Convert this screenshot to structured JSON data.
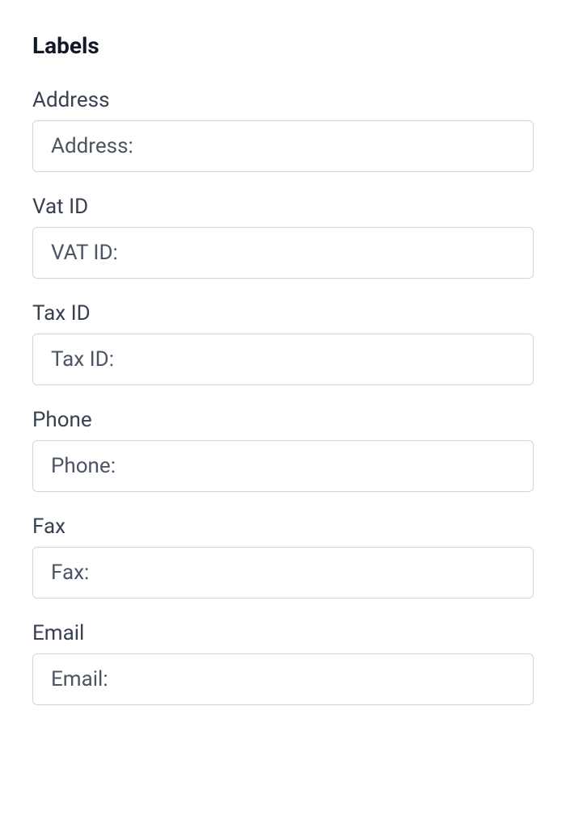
{
  "section": {
    "title": "Labels"
  },
  "fields": {
    "address": {
      "label": "Address",
      "value": "Address:"
    },
    "vatId": {
      "label": "Vat ID",
      "value": "VAT ID:"
    },
    "taxId": {
      "label": "Tax ID",
      "value": "Tax ID:"
    },
    "phone": {
      "label": "Phone",
      "value": "Phone:"
    },
    "fax": {
      "label": "Fax",
      "value": "Fax:"
    },
    "email": {
      "label": "Email",
      "value": "Email:"
    }
  },
  "styling": {
    "background_color": "#ffffff",
    "title_color": "#111827",
    "title_fontsize": 28,
    "title_fontweight": 700,
    "label_color": "#374151",
    "label_fontsize": 26,
    "input_border_color": "#d1d5db",
    "input_text_color": "#4b5563",
    "input_fontsize": 26,
    "input_border_radius": 6,
    "input_padding_vertical": 16,
    "input_padding_horizontal": 22,
    "group_margin_bottom": 28
  }
}
